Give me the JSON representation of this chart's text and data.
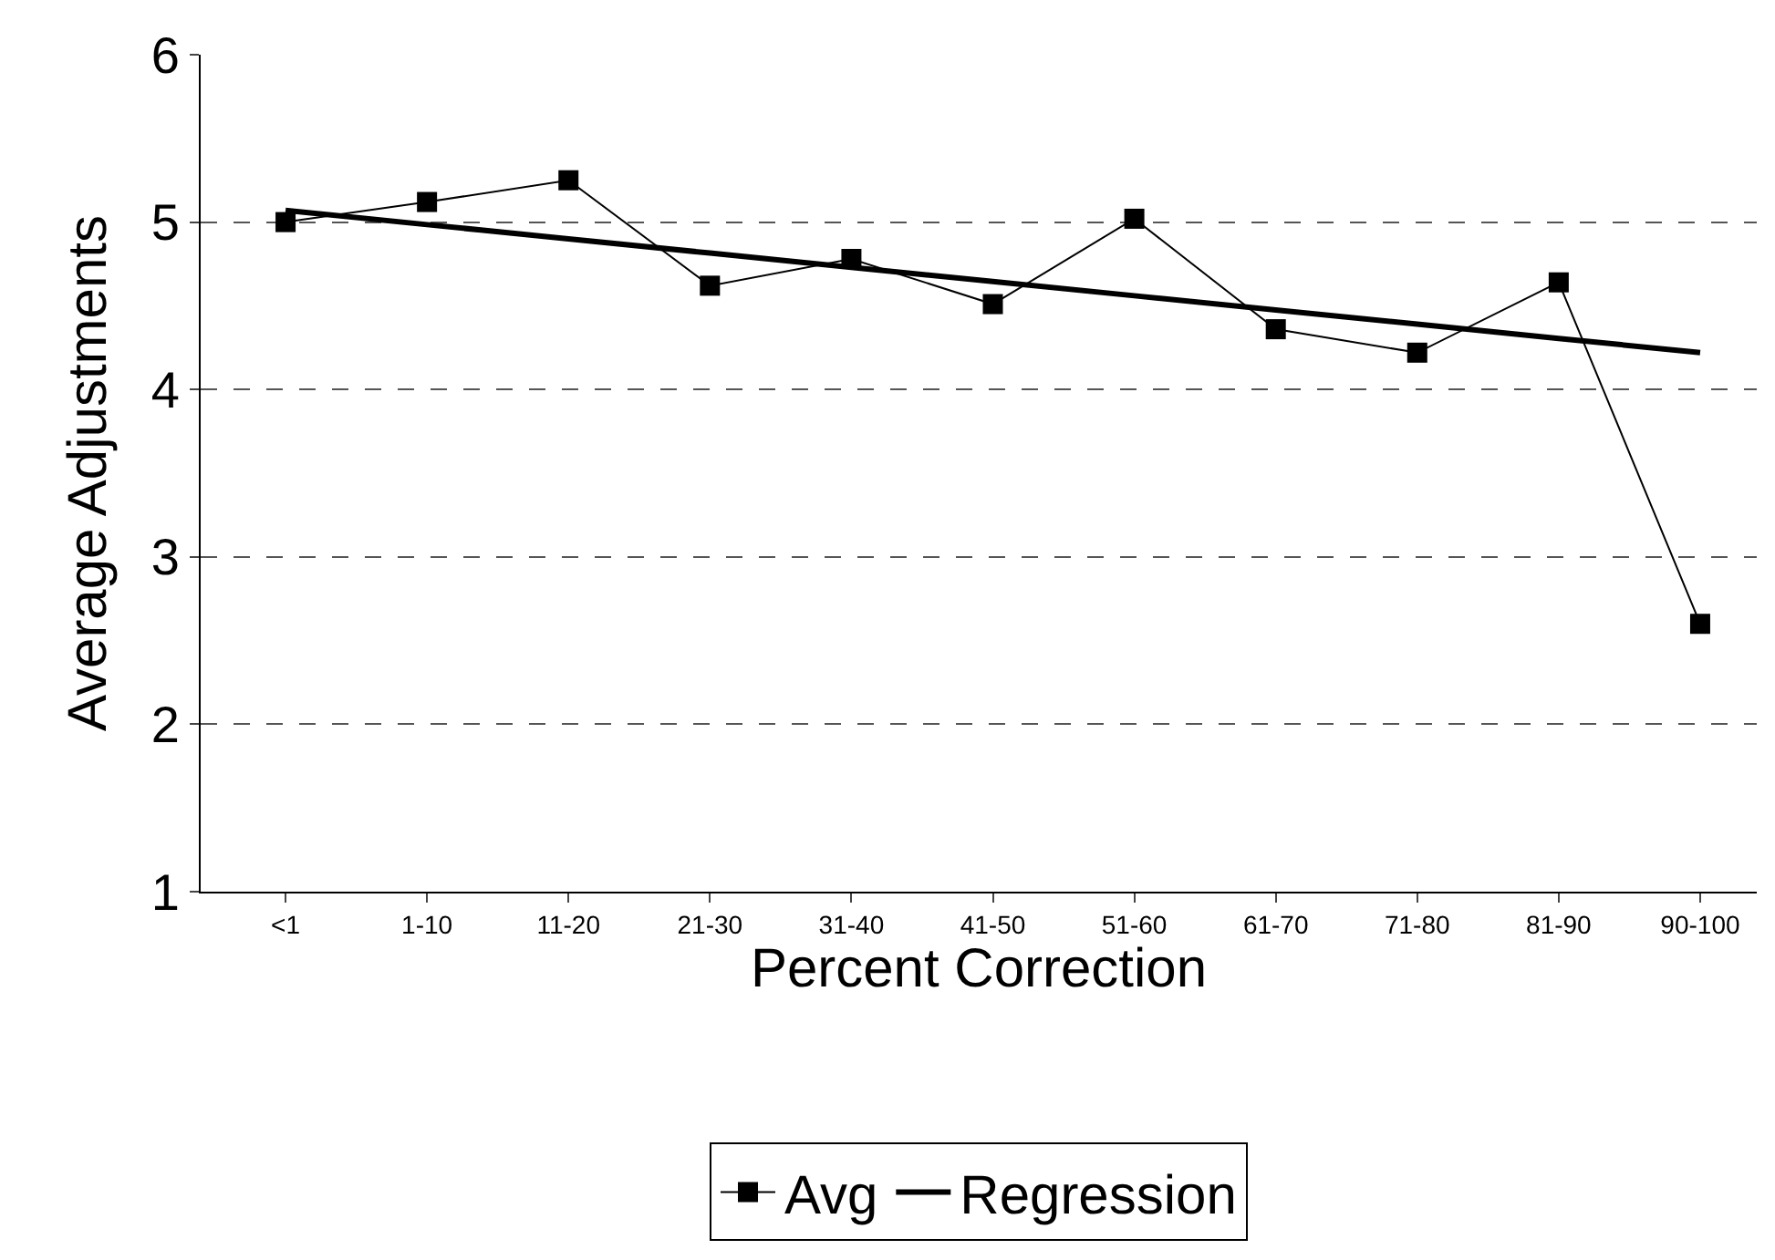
{
  "chart_data": {
    "type": "line",
    "xlabel": "Percent Correction",
    "ylabel": "Average Adjustments",
    "categories": [
      "<1",
      "1-10",
      "11-20",
      "21-30",
      "31-40",
      "41-50",
      "51-60",
      "61-70",
      "71-80",
      "81-90",
      "90-100"
    ],
    "series": [
      {
        "name": "Avg",
        "color": "#000000",
        "marker": "square",
        "values": [
          5.0,
          5.12,
          5.25,
          4.62,
          4.78,
          4.51,
          5.02,
          4.36,
          4.22,
          4.64,
          2.6
        ]
      },
      {
        "name": "Regression",
        "color": "#000000",
        "marker": "none",
        "values": [
          5.07,
          4.985,
          4.9,
          4.815,
          4.73,
          4.645,
          4.56,
          4.475,
          4.39,
          4.305,
          4.22
        ]
      }
    ],
    "ylim": [
      1,
      6
    ],
    "yticks": [
      1,
      2,
      3,
      4,
      5,
      6
    ],
    "grid": "y",
    "legend": "bottom"
  }
}
